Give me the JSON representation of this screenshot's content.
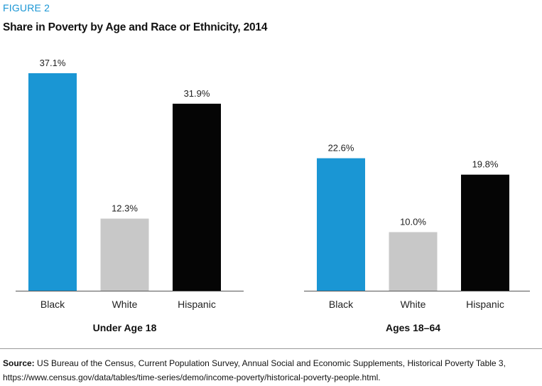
{
  "figure": {
    "label": "FIGURE 2",
    "title": "Share in Poverty by Age and Race or Ethnicity, 2014"
  },
  "colors": {
    "Black": "#1a96d4",
    "White": "#c8c8c8",
    "Hispanic": "#050505",
    "label_accent": "#1a96d4"
  },
  "chart_data": {
    "type": "bar",
    "title": "Share in Poverty by Age and Race or Ethnicity, 2014",
    "xlabel": "",
    "ylabel": "",
    "ylim": [
      0,
      37.1
    ],
    "grid": false,
    "groups": [
      {
        "name": "Under Age 18",
        "categories": [
          "Black",
          "White",
          "Hispanic"
        ],
        "values": [
          37.1,
          12.3,
          31.9
        ],
        "value_labels": [
          "37.1%",
          "12.3%",
          "31.9%"
        ]
      },
      {
        "name": "Ages 18–64",
        "categories": [
          "Black",
          "White",
          "Hispanic"
        ],
        "values": [
          22.6,
          10.0,
          19.8
        ],
        "value_labels": [
          "22.6%",
          "10.0%",
          "19.8%"
        ]
      }
    ]
  },
  "source": {
    "label": "Source:",
    "text": "US Bureau of the Census, Current Population Survey, Annual Social and Economic Supplements, Historical Poverty Table 3,",
    "url": "https://www.census.gov/data/tables/time-series/demo/income-poverty/historical-poverty-people.html."
  }
}
